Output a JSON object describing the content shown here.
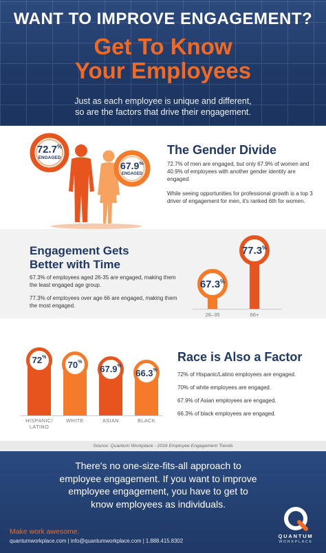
{
  "header": {
    "title": "WANT TO IMPROVE ENGAGEMENT?",
    "headline_1": "Get To Know",
    "headline_2": "Your Employees",
    "subtitle_1": "Just as each employee is unique and different,",
    "subtitle_2": "so are the factors that drive their engagement."
  },
  "gender": {
    "title": "The Gender Divide",
    "text_1": "72.7% of men are engaged, but only 67.9% of women and 40.9% of employees with another gender identity are engaged.",
    "text_2": "While seeing opportunities for professional growth is a top 3 driver of engagement for men, it's ranked 6th for women.",
    "men_value": "72.7",
    "women_value": "67.9",
    "pct": "%",
    "engaged_label": "ENGAGED",
    "men_color": "#e8541e",
    "women_color": "#f47b2a"
  },
  "time": {
    "title_1": "Engagement Gets",
    "title_2": "Better with Time",
    "text_1": "67.3% of employees aged 26-35 are engaged, making them the least engaged age group.",
    "text_2": "77.3% of employees over age 66 are engaged, making them the most engaged."
  },
  "race": {
    "title": "Race is Also a Factor",
    "lines": [
      "72% of Hispanic/Latino employees are engaged.",
      "70% of white employees are engaged.",
      "67.9% of Asian employees are engaged.",
      "66.3% of black employees are engaged."
    ]
  },
  "chart_data": [
    {
      "type": "bar",
      "categories": [
        "26–35",
        "66+"
      ],
      "values": [
        67.3,
        77.3
      ],
      "labels": [
        "67.3",
        "77.3"
      ],
      "unit": "%"
    },
    {
      "type": "bar",
      "categories": [
        "HISPANIC/\nLATINO",
        "WHITE",
        "ASIAN",
        "BLACK"
      ],
      "category_lines": [
        [
          "HISPANIC/",
          "LATINO"
        ],
        [
          "WHITE"
        ],
        [
          "ASIAN"
        ],
        [
          "BLACK"
        ]
      ],
      "values": [
        72,
        70,
        67.9,
        66.3
      ],
      "labels": [
        "72",
        "70",
        "67.9",
        "66.3"
      ],
      "unit": "%"
    }
  ],
  "source": "Source: Quantum Workplace - 2016 Employee Engagement Trends",
  "footer": {
    "message_1": "There's no one-size-fits-all approach to",
    "message_2": "employee engagement. If you want to improve",
    "message_3": "employee engagement, you have to get to",
    "message_4": "know employees as individuals.",
    "tagline": "Make work awesome.",
    "contact": "quantumworkplace.com | info@quantumworkplace.com | 1.888.415.8302",
    "logo_word": "QUANTUM",
    "logo_sub": "WORKPLACE"
  },
  "colors": {
    "navy": "#1f3866",
    "orange": "#f26a21",
    "dark_orange": "#e8541e"
  }
}
